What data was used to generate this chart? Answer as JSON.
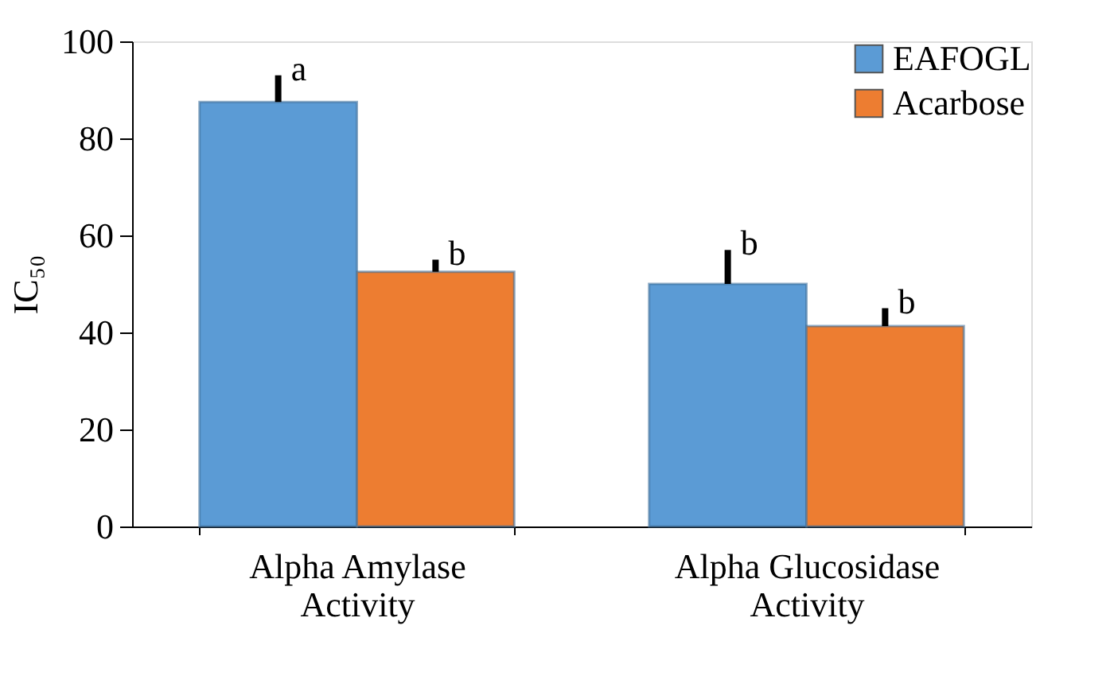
{
  "chart_data": {
    "type": "bar",
    "ylabel": "IC₅₀",
    "categories": [
      "Alpha Amylase\nActivity",
      "Alpha Glucosidase\nActivity"
    ],
    "series": [
      {
        "name": "EAFOGL",
        "color": "#5b9bd5",
        "values": [
          87.5,
          50
        ],
        "errors": [
          [
            87.5,
            93
          ],
          [
            50,
            57
          ]
        ]
      },
      {
        "name": "Acarbose",
        "color": "#ed7d31",
        "values": [
          52.5,
          41.3
        ],
        "errors": [
          [
            52.5,
            55
          ],
          [
            41.3,
            45
          ]
        ]
      }
    ],
    "ylim": [
      0,
      100
    ],
    "yticks": [
      0,
      20,
      40,
      60,
      80,
      100
    ],
    "grid": false,
    "legend": "top right",
    "annotations": [
      {
        "text": "a",
        "x": "Alpha Amylase\nActivity",
        "y": 87.5
      },
      {
        "text": "b",
        "x": "Alpha Amylase\nActivity",
        "y": 52.5
      },
      {
        "text": "b",
        "x": "Alpha Glucosidase\nActivity",
        "y": 50
      },
      {
        "text": "b",
        "x": "Alpha Glucosidase\nActivity",
        "y": 41.3
      }
    ]
  }
}
